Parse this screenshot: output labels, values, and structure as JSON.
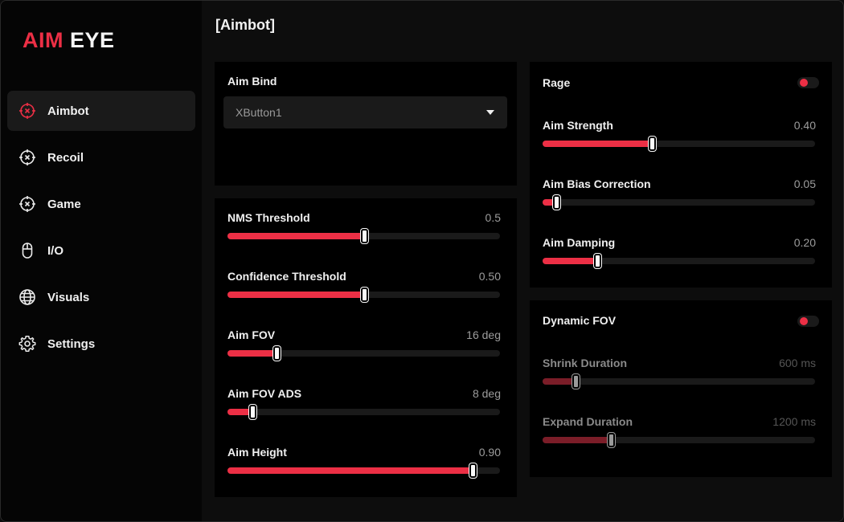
{
  "brand": {
    "part1": "AIM",
    "part2": "EYE",
    "accent": "#ec2f45"
  },
  "sidebar": {
    "items": [
      {
        "label": "Aimbot",
        "icon": "crosshair-icon",
        "active": true
      },
      {
        "label": "Recoil",
        "icon": "crosshair-x-icon",
        "active": false
      },
      {
        "label": "Game",
        "icon": "crosshair-x-icon",
        "active": false
      },
      {
        "label": "I/O",
        "icon": "mouse-icon",
        "active": false
      },
      {
        "label": "Visuals",
        "icon": "globe-icon",
        "active": false
      },
      {
        "label": "Settings",
        "icon": "gear-icon",
        "active": false
      }
    ]
  },
  "main": {
    "title": "[Aimbot]",
    "aim_bind": {
      "label": "Aim Bind",
      "value": "XButton1"
    },
    "thresholds": [
      {
        "label": "NMS Threshold",
        "value": "0.5",
        "fraction": 0.5
      },
      {
        "label": "Confidence Threshold",
        "value": "0.50",
        "fraction": 0.5
      },
      {
        "label": "Aim FOV",
        "value": "16 deg",
        "fraction": 0.18
      },
      {
        "label": "Aim FOV ADS",
        "value": "8 deg",
        "fraction": 0.09
      },
      {
        "label": "Aim Height",
        "value": "0.90",
        "fraction": 0.9
      }
    ],
    "rage": {
      "label": "Rage",
      "enabled": true,
      "sliders": [
        {
          "label": "Aim Strength",
          "value": "0.40",
          "fraction": 0.4
        },
        {
          "label": "Aim Bias Correction",
          "value": "0.05",
          "fraction": 0.05
        },
        {
          "label": "Aim Damping",
          "value": "0.20",
          "fraction": 0.2
        }
      ]
    },
    "dynamic_fov": {
      "label": "Dynamic FOV",
      "enabled": true,
      "sliders": [
        {
          "label": "Shrink Duration",
          "value": "600 ms",
          "fraction": 0.12
        },
        {
          "label": "Expand Duration",
          "value": "1200 ms",
          "fraction": 0.25
        }
      ]
    }
  }
}
